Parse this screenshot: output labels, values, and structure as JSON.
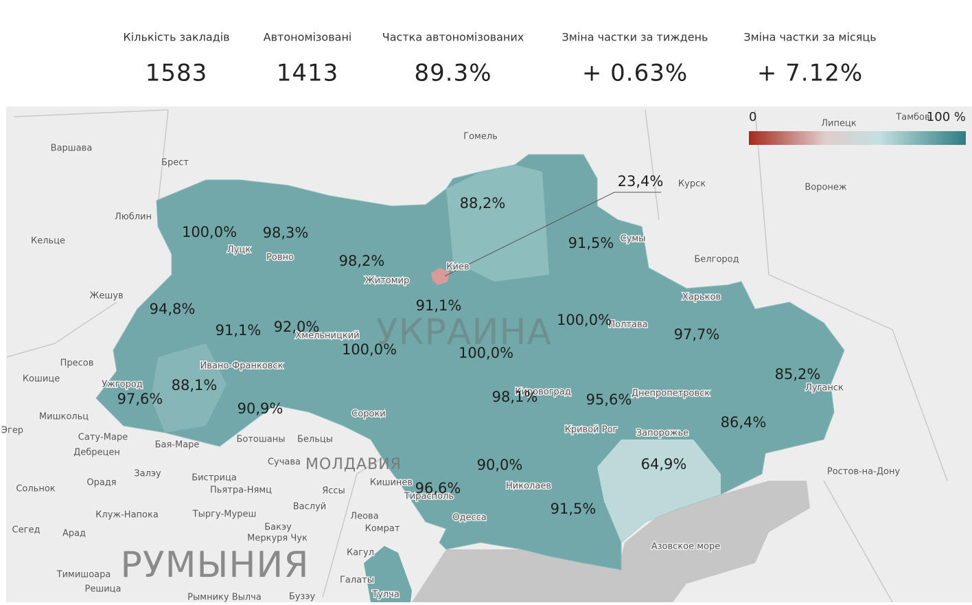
{
  "kpis": [
    {
      "label": "Кількість закладів",
      "value": "1583"
    },
    {
      "label": "Автономізовані",
      "value": "1413"
    },
    {
      "label": "Частка автономізованих",
      "value": "89.3%"
    },
    {
      "label": "Зміна частки за тиждень",
      "value": "+ 0.63%"
    },
    {
      "label": "Зміна частки за місяць",
      "value": "+ 7.12%"
    }
  ],
  "legend": {
    "min": "0",
    "max": "100 %"
  },
  "countries": [
    "УКРАИНА",
    "МОЛДАВИЯ",
    "РУМЫНИЯ"
  ],
  "places": [
    "Варшава",
    "Брест",
    "Гомель",
    "Люблин",
    "Кельце",
    "Луцк",
    "Ровно",
    "Житомир",
    "Киев",
    "Сумы",
    "Курск",
    "Воронеж",
    "Белгород",
    "Харьков",
    "Полтава",
    "Жешув",
    "Хмельницкий",
    "Ивано-Франковск",
    "Ужгород",
    "Пресов",
    "Кошице",
    "Мишкольц",
    "Эгер",
    "Сату-Маре",
    "Дебрецен",
    "Бая-Маре",
    "Ботошаны",
    "Бельцы",
    "Сороки",
    "Кировоград",
    "Днепропетровск",
    "Луганск",
    "Кривой Рог",
    "Запорожье",
    "Сучава",
    "Залэу",
    "Бистрица",
    "Пьятра-Нямц",
    "Яссы",
    "Кишинев",
    "Тирасполь",
    "Николаев",
    "Орадя",
    "Сольнок",
    "Клуж-Напока",
    "Тыргу-Муреш",
    "Васлуй",
    "Леова",
    "Одесса",
    "Сегед",
    "Арад",
    "Бакэу",
    "Меркуря Чук",
    "Комрат",
    "Кагул",
    "Тимишоара",
    "Решица",
    "Галаты",
    "Тулча",
    "Ростов-на-Дону",
    "Липецк",
    "Тамбов",
    "Рымнику Вылча",
    "Бузэу",
    "Азовское море"
  ],
  "regions": [
    "88,2%",
    "100,0%",
    "98,3%",
    "98,2%",
    "91,5%",
    "94,8%",
    "91,1%",
    "91,1%",
    "92,0%",
    "100,0%",
    "100,0%",
    "100,0%",
    "97,7%",
    "85,2%",
    "88,1%",
    "97,6%",
    "90,9%",
    "98,1%",
    "95,6%",
    "86,4%",
    "64,9%",
    "90,0%",
    "96,6%",
    "91,5%"
  ],
  "kyiv_city": "23,4%"
}
